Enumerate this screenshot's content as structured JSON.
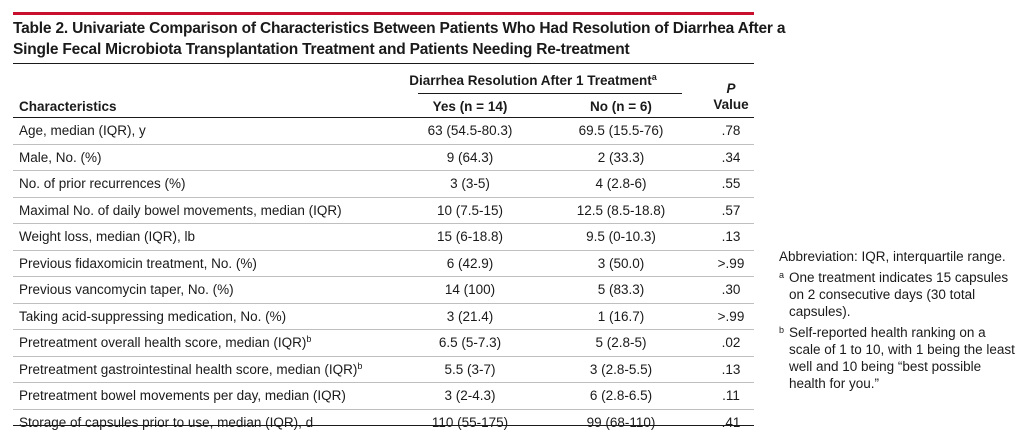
{
  "table": {
    "title_line1": "Table 2. Univariate Comparison of Characteristics Between Patients Who Had Resolution of Diarrhea After a",
    "title_line2": "Single Fecal Microbiota Transplantation Treatment and Patients Needing Re-treatment",
    "group_header": "Diarrhea Resolution After 1 Treatment",
    "group_header_sup": "a",
    "col_characteristics": "Characteristics",
    "col_yes": "Yes (n = 14)",
    "col_no": "No (n = 6)",
    "col_p_italic": "P",
    "col_p_value": "Value",
    "rows": [
      {
        "label": "Age, median (IQR), y",
        "sup": "",
        "yes": "63 (54.5-80.3)",
        "no": "69.5 (15.5-76)",
        "p": ".78"
      },
      {
        "label": "Male, No. (%)",
        "sup": "",
        "yes": "9 (64.3)",
        "no": "2 (33.3)",
        "p": ".34"
      },
      {
        "label": "No. of prior recurrences (%)",
        "sup": "",
        "yes": "3 (3-5)",
        "no": "4 (2.8-6)",
        "p": ".55"
      },
      {
        "label": "Maximal No. of daily bowel movements, median (IQR)",
        "sup": "",
        "yes": "10 (7.5-15)",
        "no": "12.5 (8.5-18.8)",
        "p": ".57"
      },
      {
        "label": "Weight loss, median (IQR), lb",
        "sup": "",
        "yes": "15 (6-18.8)",
        "no": "9.5 (0-10.3)",
        "p": ".13"
      },
      {
        "label": "Previous fidaxomicin treatment, No. (%)",
        "sup": "",
        "yes": "6 (42.9)",
        "no": "3 (50.0)",
        "p": ">.99"
      },
      {
        "label": "Previous vancomycin taper, No. (%)",
        "sup": "",
        "yes": "14 (100)",
        "no": "5 (83.3)",
        "p": ".30"
      },
      {
        "label": "Taking acid-suppressing medication, No. (%)",
        "sup": "",
        "yes": "3 (21.4)",
        "no": "1 (16.7)",
        "p": ">.99"
      },
      {
        "label": "Pretreatment overall health score, median (IQR)",
        "sup": "b",
        "yes": "6.5 (5-7.3)",
        "no": "5 (2.8-5)",
        "p": ".02"
      },
      {
        "label": "Pretreatment gastrointestinal health score, median (IQR)",
        "sup": "b",
        "yes": "5.5 (3-7)",
        "no": "3 (2.8-5.5)",
        "p": ".13"
      },
      {
        "label": "Pretreatment bowel movements per day, median (IQR)",
        "sup": "",
        "yes": "3 (2-4.3)",
        "no": "6 (2.8-6.5)",
        "p": ".11"
      },
      {
        "label": "Storage of capsules prior to use, median (IQR), d",
        "sup": "",
        "yes": "110 (55-175)",
        "no": "99 (68-110)",
        "p": ".41"
      }
    ]
  },
  "notes": {
    "abbreviation": "Abbreviation: IQR, interquartile range.",
    "footnotes": [
      {
        "mark": "a",
        "text": "One treatment indicates 15 capsules on 2 consecutive days (30 total capsules)."
      },
      {
        "mark": "b",
        "text": "Self-reported health ranking on a scale of 1 to 10, with 1 being the least well and 10 being “best possible health for you.”"
      }
    ]
  },
  "colors": {
    "accent": "#c8102e",
    "text": "#1a1a1a",
    "row_rule": "#bfbfbf"
  }
}
